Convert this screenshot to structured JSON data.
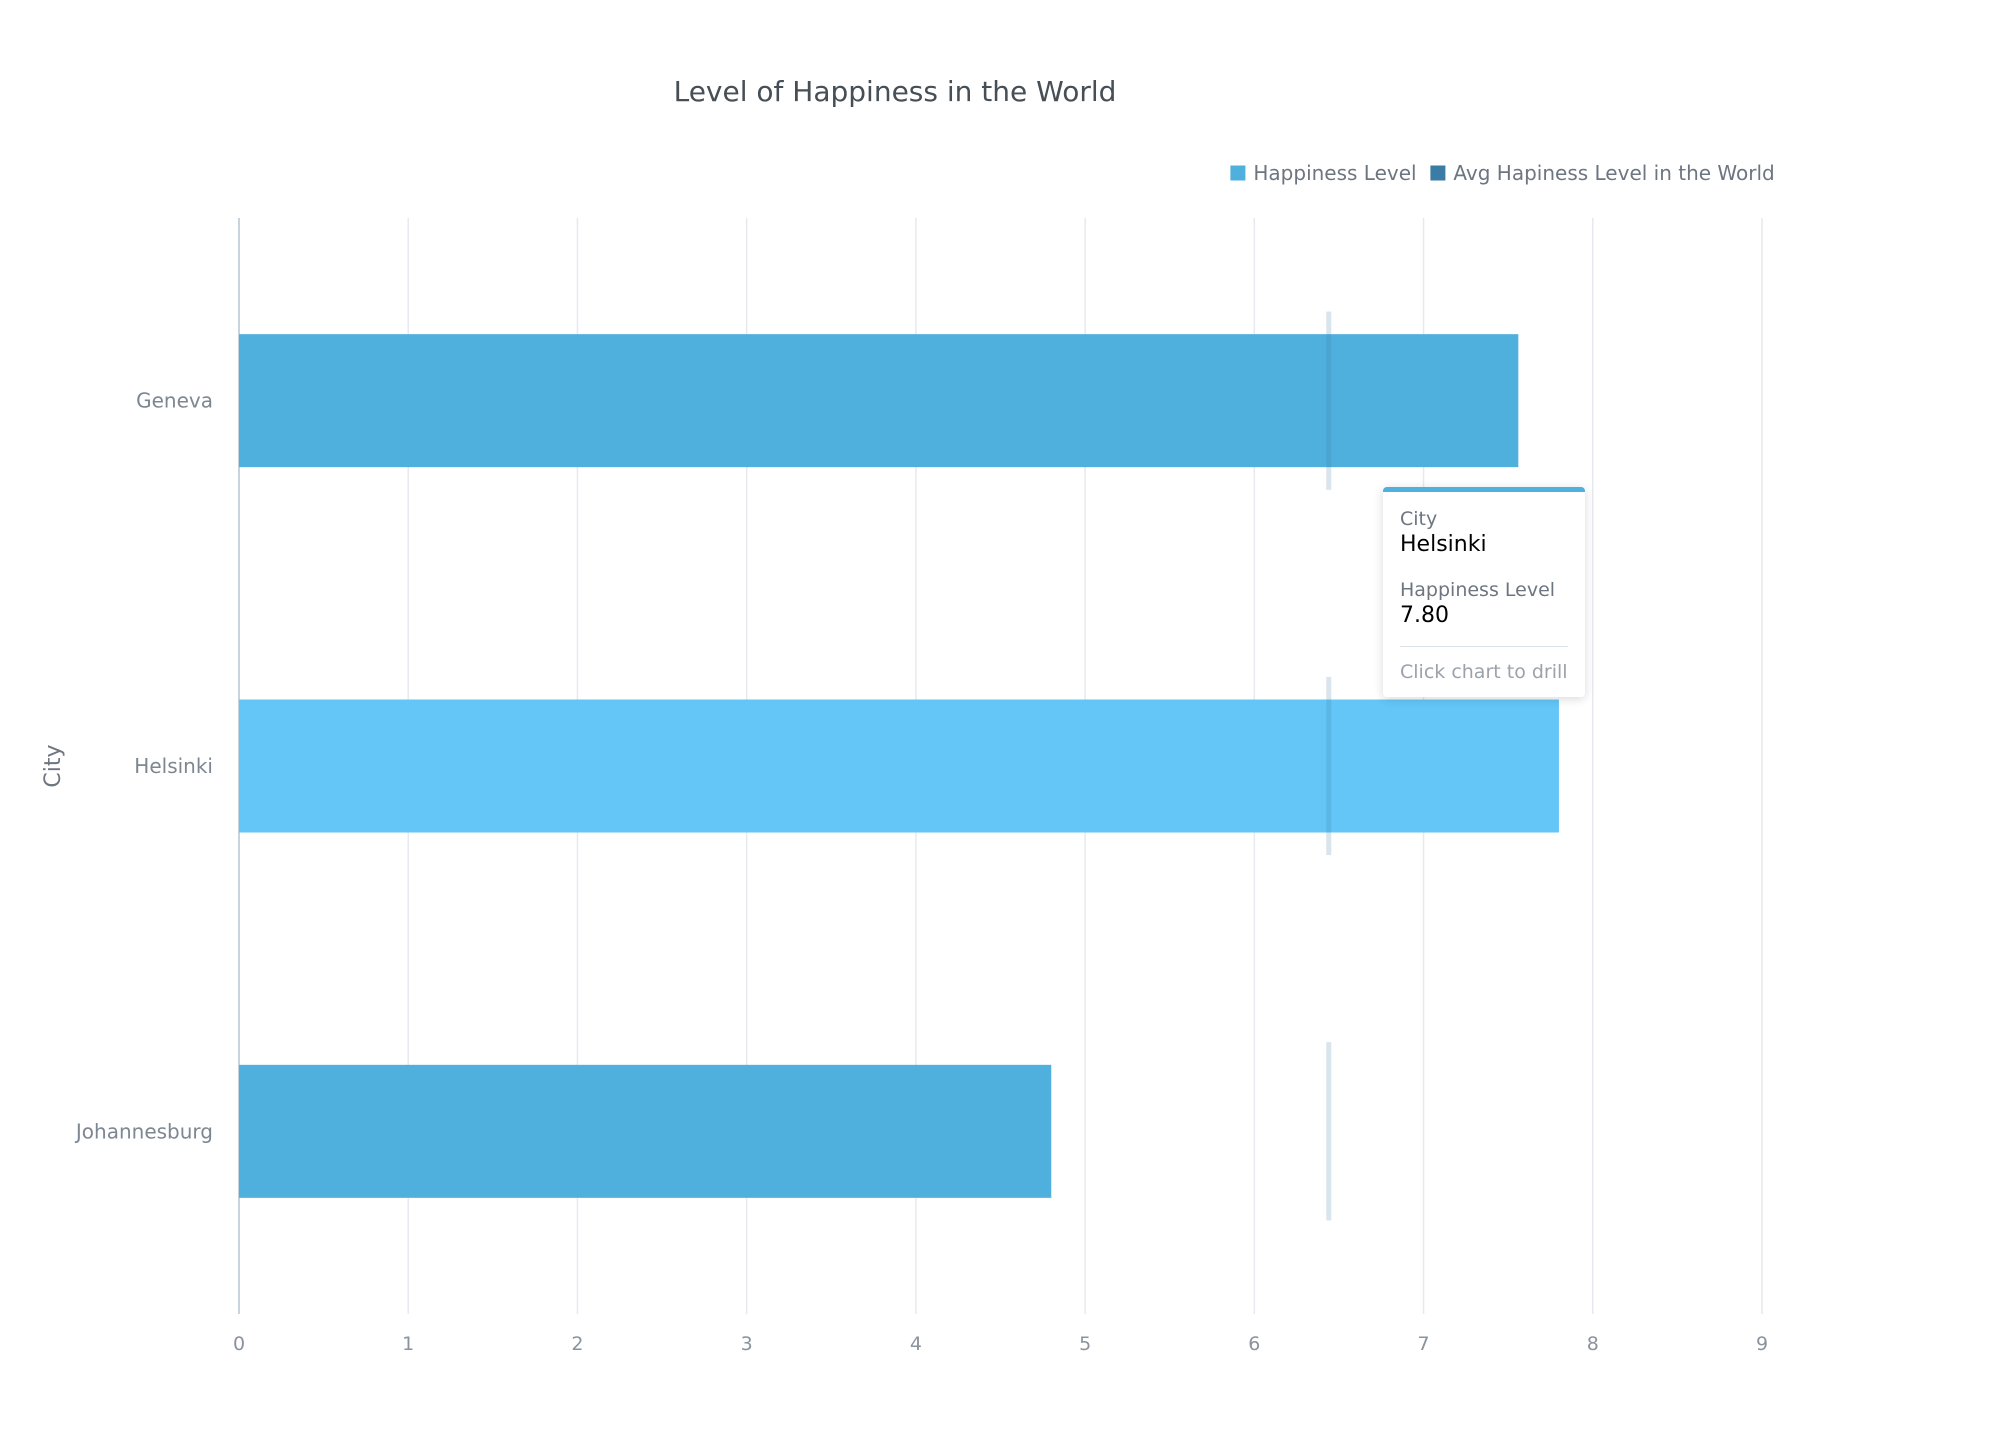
{
  "chart_data": {
    "type": "bar",
    "orientation": "horizontal",
    "title": "Level of Happiness in the World",
    "ylabel": "City",
    "xlabel": "",
    "categories": [
      "Geneva",
      "Helsinki",
      "Johannesburg"
    ],
    "series": [
      {
        "name": "Happiness Level",
        "type": "bar",
        "color": "#4fafdd",
        "values": [
          7.56,
          7.8,
          4.8
        ]
      },
      {
        "name": "Avg Hapiness Level in the World",
        "type": "target-marker",
        "color": "#3a7ca5",
        "values": [
          6.44,
          6.44,
          6.44
        ]
      }
    ],
    "highlighted_category": "Helsinki",
    "highlight_color": "#63c6f7",
    "xlim": [
      0,
      9
    ],
    "xticks": [
      "0",
      "1",
      "2",
      "3",
      "4",
      "5",
      "6",
      "7",
      "8",
      "9"
    ],
    "grid": true,
    "legend_position": "top-right"
  },
  "tooltip": {
    "city_label": "City",
    "city_value": "Helsinki",
    "metric_label": "Happiness Level",
    "metric_value": "7.80",
    "hint": "Click chart to drill"
  }
}
